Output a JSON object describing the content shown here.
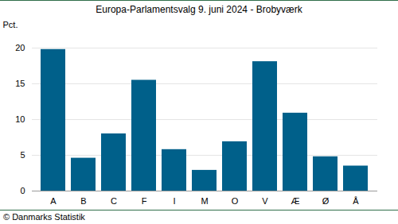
{
  "chart_data": {
    "type": "bar",
    "title": "Europa-Parlamentsvalg 9. juni 2024 - Brobyværk",
    "y_label": "Pct.",
    "caption": "© Danmarks Statistik",
    "categories": [
      "A",
      "B",
      "C",
      "F",
      "I",
      "M",
      "O",
      "V",
      "Æ",
      "Ø",
      "Å"
    ],
    "values": [
      19.8,
      4.6,
      8.0,
      15.5,
      5.8,
      2.9,
      6.9,
      18.1,
      10.9,
      4.8,
      3.5
    ],
    "color": "#00608a",
    "ylim": [
      0,
      20
    ],
    "yticks": [
      0,
      5,
      10,
      15,
      20
    ],
    "grid": true
  }
}
